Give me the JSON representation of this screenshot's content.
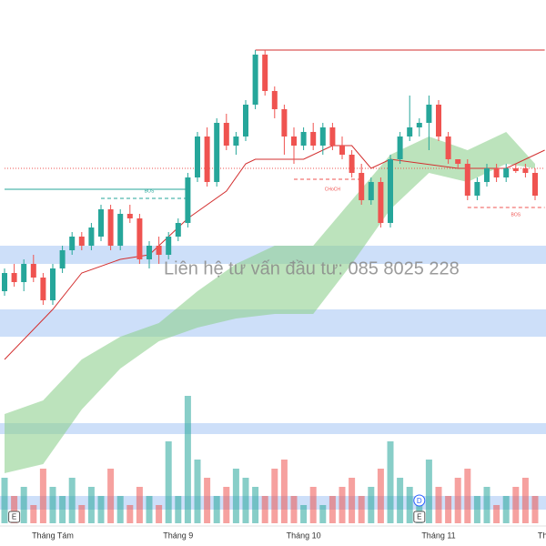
{
  "chart_data": {
    "type": "candlestick",
    "ylim": [
      0,
      60
    ],
    "volume_ylim": [
      0,
      16
    ],
    "up_color": "#26a69a",
    "down_color": "#ef5350",
    "open": [
      28,
      30,
      29,
      31,
      29.5,
      27,
      30.5,
      32.5,
      34,
      33,
      34,
      37,
      33,
      36.5,
      36,
      31.5,
      33,
      32,
      34,
      35.5,
      40.5,
      45,
      40,
      46.5,
      44,
      45,
      48.5,
      54,
      50,
      48,
      45,
      44,
      45.5,
      44,
      46,
      44,
      43,
      41,
      38,
      40,
      35.5,
      42.5,
      45,
      46,
      46.5,
      48.5,
      45,
      42.5,
      42,
      38.5,
      40,
      41.5,
      40.5,
      41.5,
      41.5,
      41
    ],
    "high": [
      30.5,
      31,
      31.5,
      32,
      30,
      31,
      33,
      34.5,
      34.5,
      35.5,
      37.5,
      37.5,
      37,
      37.5,
      36.5,
      33.5,
      34,
      34.5,
      36,
      41,
      45.5,
      46,
      47,
      47.5,
      45.5,
      49,
      54.5,
      54.5,
      50.5,
      48.5,
      46,
      46,
      46.5,
      46.5,
      46.5,
      45,
      43.5,
      42,
      40.5,
      40.5,
      43,
      45.5,
      49.5,
      47,
      49.5,
      49,
      45.5,
      42.5,
      42.5,
      40.5,
      42,
      42,
      42,
      42,
      42,
      41.5
    ],
    "low": [
      27.5,
      28.5,
      28,
      29,
      26.5,
      26.5,
      30,
      32,
      32.5,
      32.5,
      33.5,
      32.5,
      32.5,
      35.5,
      31,
      30.5,
      31,
      31.5,
      33.5,
      35,
      40,
      39.5,
      39.5,
      43.5,
      43,
      44.5,
      48,
      49.5,
      47,
      43,
      42,
      43.5,
      43.5,
      43,
      43.5,
      42.5,
      40.5,
      37.5,
      37.5,
      35,
      35,
      42,
      44.5,
      45,
      43.5,
      44.5,
      42,
      41.5,
      38,
      38,
      39.5,
      40,
      40,
      41,
      40.5,
      38
    ],
    "close": [
      30,
      29,
      31,
      29.5,
      27,
      30.5,
      32.5,
      34,
      33,
      35,
      37,
      33,
      36.5,
      36,
      31.5,
      33,
      32,
      34,
      35.5,
      40.5,
      45,
      40,
      46.5,
      44,
      45,
      48.5,
      54,
      50,
      48,
      45,
      44,
      45.5,
      44,
      46,
      44,
      43,
      41,
      38,
      40,
      35.5,
      42.5,
      45,
      46,
      46.5,
      48.5,
      45,
      42.5,
      42,
      38.5,
      40,
      41.5,
      40.5,
      41.5,
      41.2,
      41,
      38.5
    ],
    "volume": [
      5,
      3,
      4,
      2,
      6,
      4,
      3,
      5,
      2,
      4,
      3,
      6,
      3,
      2,
      4,
      3,
      2,
      9,
      3,
      14,
      7,
      5,
      3,
      4,
      6,
      5,
      4,
      3,
      6,
      7,
      3,
      2,
      4,
      2,
      3,
      4,
      5,
      3,
      4,
      6,
      9,
      5,
      4,
      3,
      7,
      4,
      3,
      5,
      6,
      3,
      4,
      2,
      3,
      4,
      5,
      3
    ],
    "cloud": {
      "x": [
        0,
        4,
        8,
        12,
        16,
        20,
        24,
        28,
        32,
        36,
        40,
        44,
        48,
        52,
        55
      ],
      "upper": [
        14.5,
        16,
        20.5,
        23,
        24.5,
        28,
        31,
        33,
        33,
        38,
        43,
        45,
        43.5,
        45.5,
        42
      ],
      "lower": [
        8,
        9,
        15,
        19.5,
        22.5,
        24,
        25,
        25.5,
        25.5,
        31,
        37,
        41,
        40,
        42,
        41.5
      ],
      "color": "#8fd18f"
    },
    "kijun": {
      "x": [
        0,
        5,
        8,
        12,
        15,
        19,
        23,
        25,
        26,
        31,
        34,
        36,
        38,
        40,
        47,
        52,
        56
      ],
      "values": [
        20.5,
        26,
        30,
        31.5,
        32,
        36,
        39,
        42,
        42.5,
        42.5,
        44,
        44,
        41.5,
        42.5,
        41.5,
        41.5,
        43.5
      ],
      "color": "#d32f2f"
    },
    "zones": [
      [
        31,
        33
      ],
      [
        23,
        26
      ],
      [
        12.3,
        13.5
      ],
      [
        4,
        5.5
      ]
    ],
    "zone_color": "#bcd4f7",
    "levels": [
      {
        "value": 54.5,
        "start": 26,
        "end": 56,
        "color": "#d32f2f",
        "style": "solid"
      },
      {
        "value": 39.2,
        "start": 0,
        "end": 19,
        "color": "#26a69a",
        "style": "solid"
      },
      {
        "value": 41.5,
        "start": 0,
        "end": 56,
        "color": "#ef5350",
        "style": "dotted"
      },
      {
        "value": 38.2,
        "start": 10,
        "end": 19,
        "color": "#26a69a",
        "style": "dashed"
      },
      {
        "value": 40.3,
        "start": 30,
        "end": 37,
        "color": "#ef5350",
        "style": "dashed"
      },
      {
        "value": 37.2,
        "start": 48,
        "end": 56,
        "color": "#ef5350",
        "style": "dashed"
      }
    ],
    "annotations": [
      {
        "text": "BOS",
        "index": 15,
        "value": 39.0,
        "color": "#26a69a"
      },
      {
        "text": "CHoCH",
        "index": 34,
        "value": 39.2,
        "color": "#ef5350"
      },
      {
        "text": "BOS",
        "index": 53,
        "value": 36.4,
        "color": "#ef5350"
      }
    ],
    "month_labels": [
      {
        "label": "Tháng Tám",
        "index": 5
      },
      {
        "label": "Tháng 9",
        "index": 18
      },
      {
        "label": "Tháng 10",
        "index": 31
      },
      {
        "label": "Tháng 11",
        "index": 45
      },
      {
        "label": "Thá",
        "index": 56
      }
    ],
    "watermark": "Liên hệ tư vấn đầu tư:  085 8025 228",
    "markers": [
      {
        "text": "E",
        "index": 1
      },
      {
        "text": "D",
        "index": 43
      },
      {
        "text": "E",
        "index": 43
      }
    ]
  }
}
